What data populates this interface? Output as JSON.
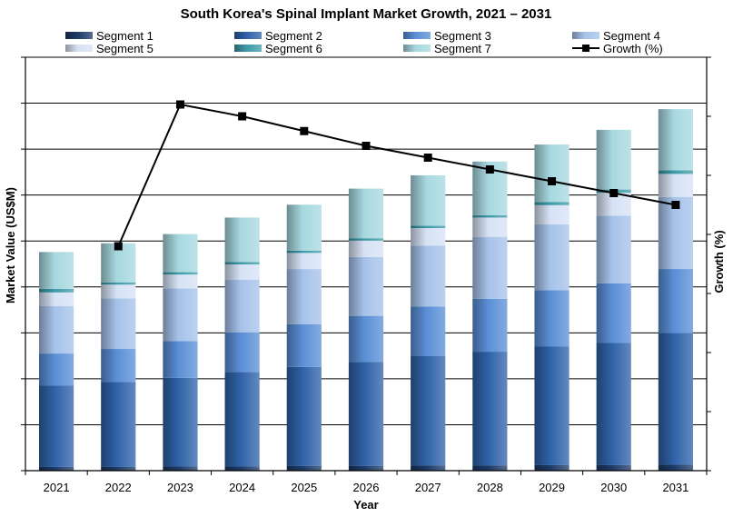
{
  "chart_data": {
    "type": "bar",
    "stacked": true,
    "title": "South Korea's Spinal Implant Market Growth, 2021 – 2031",
    "xlabel": "Year",
    "ylabel": "Market Value (US$M)",
    "y2label": "Growth (%)",
    "categories": [
      "2021",
      "2022",
      "2023",
      "2024",
      "2025",
      "2026",
      "2027",
      "2028",
      "2029",
      "2030",
      "2031"
    ],
    "ylim": [
      0,
      9
    ],
    "y2lim": [
      0,
      7
    ],
    "grid": true,
    "legend_position": "top",
    "series": [
      {
        "name": "Segment 1",
        "color": "#1d3a66",
        "values": [
          0.08,
          0.08,
          0.09,
          0.09,
          0.1,
          0.1,
          0.11,
          0.11,
          0.12,
          0.12,
          0.13
        ]
      },
      {
        "name": "Segment 2",
        "color": "#2f62a8",
        "values": [
          1.77,
          1.85,
          1.93,
          2.06,
          2.16,
          2.27,
          2.39,
          2.48,
          2.58,
          2.66,
          2.86
        ]
      },
      {
        "name": "Segment 3",
        "color": "#5a8fd6",
        "values": [
          0.7,
          0.72,
          0.8,
          0.86,
          0.93,
          1.0,
          1.07,
          1.15,
          1.23,
          1.3,
          1.4
        ]
      },
      {
        "name": "Segment 4",
        "color": "#a6c2ea",
        "values": [
          1.03,
          1.1,
          1.15,
          1.15,
          1.2,
          1.28,
          1.33,
          1.35,
          1.43,
          1.47,
          1.57
        ]
      },
      {
        "name": "Segment 5",
        "color": "#d6e2f5",
        "values": [
          0.3,
          0.3,
          0.3,
          0.33,
          0.35,
          0.36,
          0.38,
          0.42,
          0.42,
          0.5,
          0.5
        ]
      },
      {
        "name": "Segment 6",
        "color": "#3e9aa8",
        "values": [
          0.08,
          0.05,
          0.05,
          0.05,
          0.05,
          0.05,
          0.05,
          0.05,
          0.07,
          0.07,
          0.08
        ]
      },
      {
        "name": "Segment 7",
        "color": "#a7d8e0",
        "values": [
          0.8,
          0.85,
          0.83,
          0.97,
          1.0,
          1.08,
          1.1,
          1.17,
          1.25,
          1.3,
          1.33
        ]
      }
    ],
    "line_series": {
      "name": "Growth (%)",
      "color": "#000000",
      "axis": "secondary",
      "values": [
        null,
        3.8,
        6.2,
        6.0,
        5.75,
        5.5,
        5.3,
        5.1,
        4.9,
        4.7,
        4.5
      ]
    }
  }
}
